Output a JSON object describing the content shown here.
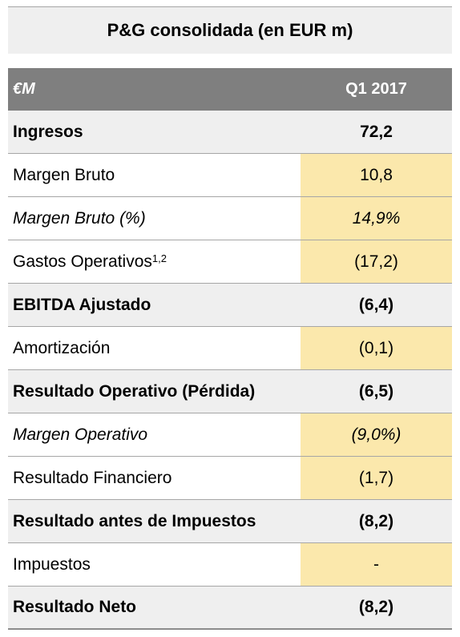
{
  "title": "P&G consolidada (en EUR m)",
  "header": {
    "label": "€M",
    "period": "Q1 2017"
  },
  "rows": [
    {
      "label": "Ingresos",
      "sup": "",
      "value": "72,2"
    },
    {
      "label": "Margen Bruto",
      "sup": "",
      "value": "10,8"
    },
    {
      "label": "Margen Bruto (%)",
      "sup": "",
      "value": "14,9%"
    },
    {
      "label": "Gastos Operativos",
      "sup": "1,2",
      "value": "(17,2)"
    },
    {
      "label": "EBITDA Ajustado",
      "sup": "",
      "value": "(6,4)"
    },
    {
      "label": "Amortización",
      "sup": "",
      "value": "(0,1)"
    },
    {
      "label": "Resultado Operativo (Pérdida)",
      "sup": "",
      "value": "(6,5)"
    },
    {
      "label": "Margen Operativo",
      "sup": "",
      "value": "(9,0%)"
    },
    {
      "label": "Resultado Financiero",
      "sup": "",
      "value": "(1,7)"
    },
    {
      "label": "Resultado antes de Impuestos",
      "sup": "",
      "value": "(8,2)"
    },
    {
      "label": "Impuestos",
      "sup": "",
      "value": "-"
    },
    {
      "label": "Resultado Neto",
      "sup": "",
      "value": "(8,2)"
    }
  ],
  "colors": {
    "header_bg": "#7f7f7f",
    "highlight": "#fbe8ac",
    "bold_row_bg": "#efefef"
  }
}
